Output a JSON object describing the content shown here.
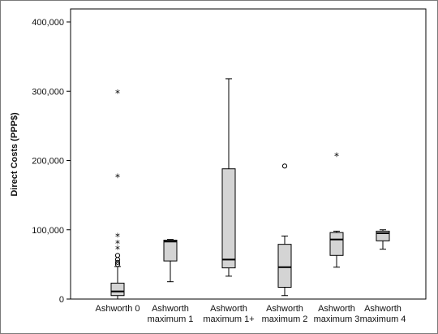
{
  "chart_data": {
    "type": "boxplot",
    "ylabel": "Direct Costs (PPP$)",
    "xlabel": "",
    "ylim": [
      0,
      400000
    ],
    "yticks": [
      0,
      100000,
      200000,
      300000,
      400000
    ],
    "ytick_labels": [
      "0",
      "100,000",
      "200,000",
      "300,000",
      "400,000"
    ],
    "grid": false,
    "categories": [
      [
        "Ashworth 0"
      ],
      [
        "Ashworth",
        "maximum 1"
      ],
      [
        "Ashworth",
        "maximum 1+"
      ],
      [
        "Ashworth",
        "maximum 2"
      ],
      [
        "Ashworth",
        "maximum 3"
      ],
      [
        "Ashworth",
        "maximum 4"
      ]
    ],
    "box_color": "#d4d4d4",
    "boxes": [
      {
        "whisker_low": 0,
        "q1": 5000,
        "median": 11000,
        "q3": 23000,
        "whisker_high": 47000,
        "outliers": [
          50000,
          53000,
          57000,
          63000
        ],
        "extremes": [
          74000,
          82000,
          92000,
          178000,
          299000
        ]
      },
      {
        "whisker_low": 25000,
        "q1": 55000,
        "median": 83000,
        "q3": 85000,
        "whisker_high": 86000,
        "outliers": [],
        "extremes": []
      },
      {
        "whisker_low": 33000,
        "q1": 45000,
        "median": 57000,
        "q3": 188000,
        "whisker_high": 318000,
        "outliers": [],
        "extremes": []
      },
      {
        "whisker_low": 5000,
        "q1": 17000,
        "median": 46000,
        "q3": 79000,
        "whisker_high": 91000,
        "outliers": [
          192000
        ],
        "extremes": []
      },
      {
        "whisker_low": 46000,
        "q1": 63000,
        "median": 86000,
        "q3": 96000,
        "whisker_high": 98000,
        "outliers": [],
        "extremes": [
          208000
        ]
      },
      {
        "whisker_low": 72000,
        "q1": 84000,
        "median": 95000,
        "q3": 98000,
        "whisker_high": 100000,
        "outliers": [],
        "extremes": []
      }
    ]
  }
}
